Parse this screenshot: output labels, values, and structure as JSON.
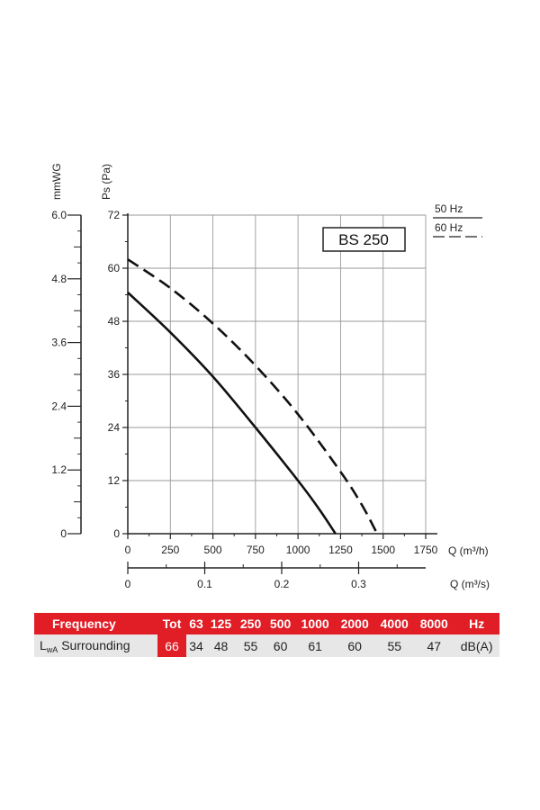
{
  "chart_data": {
    "type": "line",
    "model_label": "BS 250",
    "y_primary": {
      "label": "Ps (Pa)",
      "min": 0,
      "max": 72,
      "ticks": [
        0,
        12,
        24,
        36,
        48,
        60,
        72
      ]
    },
    "y_secondary": {
      "label": "mmWG",
      "ticks": [
        "0",
        "1.2",
        "2.4",
        "3.6",
        "4.8",
        "6.0"
      ]
    },
    "x_primary": {
      "label": "Q (m³/h)",
      "min": 0,
      "max": 1750,
      "ticks": [
        0,
        250,
        500,
        750,
        1000,
        1250,
        1500,
        1750
      ]
    },
    "x_secondary": {
      "label": "Q (m³/s)",
      "ticks": [
        0,
        0.1,
        0.2,
        0.3
      ],
      "tick_labels": [
        "0",
        "0.1",
        "0.2",
        "0.3"
      ]
    },
    "legend": [
      {
        "name": "50 Hz",
        "style": "solid"
      },
      {
        "name": "60 Hz",
        "style": "dashed"
      }
    ],
    "series": [
      {
        "name": "50 Hz",
        "style": "solid",
        "x": [
          0,
          250,
          500,
          750,
          1000,
          1125,
          1220
        ],
        "y": [
          54.5,
          45.5,
          35.5,
          24,
          12,
          5.5,
          0
        ]
      },
      {
        "name": "60 Hz",
        "style": "dashed",
        "x": [
          0,
          250,
          500,
          750,
          1000,
          1250,
          1375,
          1465
        ],
        "y": [
          62,
          55.5,
          47.5,
          38,
          27,
          14,
          6.5,
          0
        ]
      }
    ]
  },
  "noise_table": {
    "header_label": "Frequency",
    "tot_label": "Tot",
    "freq": [
      "63",
      "125",
      "250",
      "500",
      "1000",
      "2000",
      "4000",
      "8000"
    ],
    "unit_label": "Hz",
    "row_label_main": "L",
    "row_label_sub": "wA",
    "row_label_rest": " Surrounding",
    "tot_value": "66",
    "values": [
      "34",
      "48",
      "55",
      "60",
      "61",
      "60",
      "55",
      "47"
    ],
    "value_unit": "dB(A)"
  }
}
